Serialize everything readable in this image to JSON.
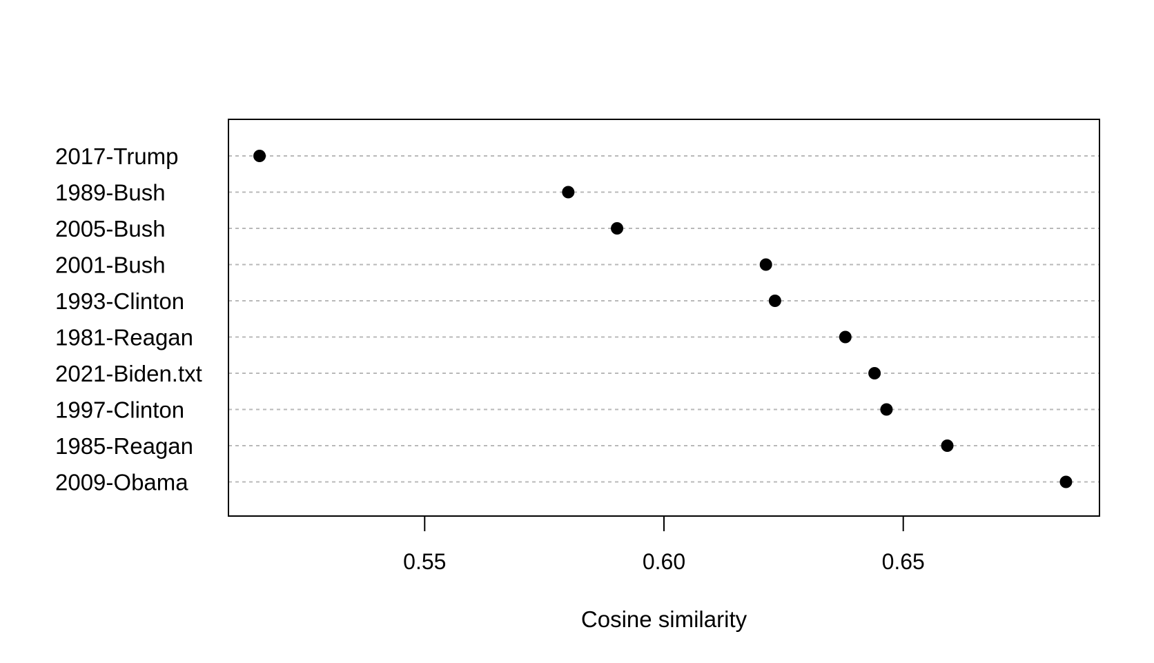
{
  "chart_data": {
    "type": "scatter",
    "title": "",
    "xlabel": "Cosine similarity",
    "ylabel": "",
    "xlim": [
      0.509,
      0.691
    ],
    "xticks": [
      0.55,
      0.6,
      0.65
    ],
    "xtick_labels": [
      "0.55",
      "0.60",
      "0.65"
    ],
    "grid": "horizontal dotted",
    "legend": "none",
    "point_color": "#000000",
    "grid_color": "#b8b8b8",
    "categories": [
      "2017-Trump",
      "1989-Bush",
      "2005-Bush",
      "2001-Bush",
      "1993-Clinton",
      "1981-Reagan",
      "2021-Biden.txt",
      "1997-Clinton",
      "1985-Reagan",
      "2009-Obama"
    ],
    "values": [
      0.5155,
      0.58,
      0.5902,
      0.6213,
      0.6232,
      0.6379,
      0.644,
      0.6465,
      0.6592,
      0.684
    ]
  }
}
